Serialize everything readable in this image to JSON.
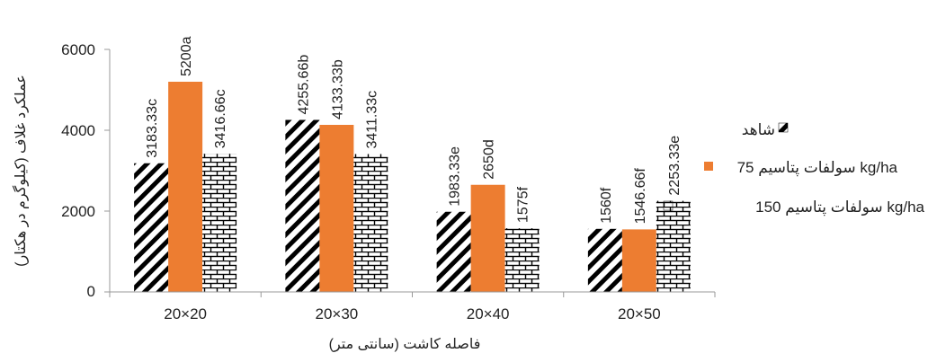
{
  "chart_data": {
    "type": "bar",
    "xlabel": "فاصله کاشت (سانتی متر)",
    "ylabel": "عملکرد غلاف (کیلوگرم در هکتار)",
    "ylim": [
      0,
      6000
    ],
    "yticks": [
      "0",
      "2000",
      "4000",
      "6000"
    ],
    "grid": false,
    "legend_position": "right",
    "categories": [
      "20×20",
      "20×30",
      "20×40",
      "20×50"
    ],
    "series": [
      {
        "name": "شاهد",
        "pattern": "diagonal-hatch",
        "color": "#000000",
        "values": [
          3183.33,
          4255.66,
          1983.33,
          1560
        ],
        "labels": [
          "3183.33c",
          "4255.66b",
          "1983.33e",
          "1560f"
        ]
      },
      {
        "name": "سولفات پتاسیم 75 kg/ha",
        "pattern": "solid",
        "color": "#ED7D31",
        "values": [
          5200,
          4133.33,
          2650,
          1546.66
        ],
        "labels": [
          "5200a",
          "4133.33b",
          "2650d",
          "1546.66f"
        ]
      },
      {
        "name": "سولفات پتاسیم 150 kg/ha",
        "pattern": "brick",
        "color": "#000000",
        "values": [
          3416.66,
          3411.33,
          1575,
          2253.33
        ],
        "labels": [
          "3416.66c",
          "3411.33c",
          "1575f",
          "2253.33e"
        ]
      }
    ]
  }
}
